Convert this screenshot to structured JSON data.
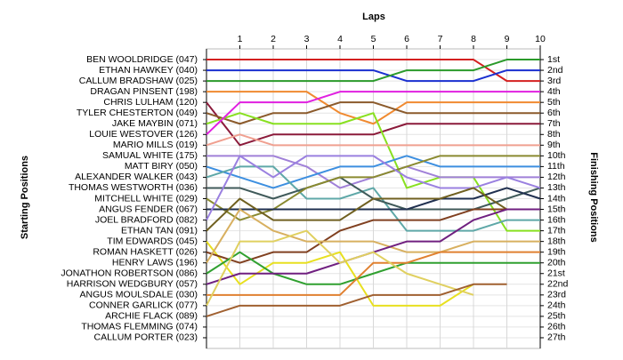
{
  "chart_data": {
    "type": "line",
    "x_label": "Laps",
    "y_label": "Starting Positions",
    "y2_label": "Finishing Positions",
    "x": [
      0,
      1,
      2,
      3,
      4,
      5,
      6,
      7,
      8,
      9,
      10
    ],
    "xlim": [
      0,
      10
    ],
    "xticks": [
      1,
      2,
      3,
      4,
      5,
      6,
      7,
      8,
      9,
      10
    ],
    "ylim": [
      28,
      0
    ],
    "y2lim": [
      28,
      0
    ],
    "y2ticks": [
      {
        "value": 1,
        "label": "1st"
      },
      {
        "value": 2,
        "label": "2nd"
      },
      {
        "value": 3,
        "label": "3rd"
      },
      {
        "value": 4,
        "label": "4th"
      },
      {
        "value": 5,
        "label": "5th"
      },
      {
        "value": 6,
        "label": "6th"
      },
      {
        "value": 7,
        "label": "7th"
      },
      {
        "value": 8,
        "label": "8th"
      },
      {
        "value": 9,
        "label": "9th"
      },
      {
        "value": 10,
        "label": "10th"
      },
      {
        "value": 11,
        "label": "11th"
      },
      {
        "value": 12,
        "label": "12th"
      },
      {
        "value": 13,
        "label": "13th"
      },
      {
        "value": 14,
        "label": "14th"
      },
      {
        "value": 15,
        "label": "15th"
      },
      {
        "value": 16,
        "label": "16th"
      },
      {
        "value": 17,
        "label": "17th"
      },
      {
        "value": 18,
        "label": "18th"
      },
      {
        "value": 19,
        "label": "19th"
      },
      {
        "value": 20,
        "label": "20th"
      },
      {
        "value": 21,
        "label": "21st"
      },
      {
        "value": 22,
        "label": "22nd"
      },
      {
        "value": 23,
        "label": "23rd"
      },
      {
        "value": 24,
        "label": "24th"
      },
      {
        "value": 25,
        "label": "25th"
      },
      {
        "value": 26,
        "label": "26th"
      },
      {
        "value": 27,
        "label": "27th"
      }
    ],
    "grid": true,
    "series": [
      {
        "name": "BEN WOOLDRIDGE (047)",
        "color": "#d42020",
        "values": [
          1,
          1,
          1,
          1,
          1,
          1,
          1,
          1,
          1,
          3,
          3
        ]
      },
      {
        "name": "ETHAN HAWKEY (040)",
        "color": "#1a2fd0",
        "values": [
          2,
          2,
          2,
          2,
          2,
          2,
          3,
          3,
          3,
          2,
          2
        ]
      },
      {
        "name": "CALLUM BRADSHAW (025)",
        "color": "#2a9a2a",
        "values": [
          3,
          3,
          3,
          3,
          3,
          3,
          2,
          2,
          2,
          1,
          1
        ]
      },
      {
        "name": "DRAGAN PINSENT (198)",
        "color": "#f08a30",
        "values": [
          4,
          4,
          4,
          4,
          6,
          7,
          5,
          5,
          5,
          5,
          5
        ]
      },
      {
        "name": "CHRIS LULHAM (120)",
        "color": "#8b1a3a",
        "values": [
          5,
          9,
          8,
          8,
          8,
          8,
          7,
          7,
          7,
          7,
          7
        ]
      },
      {
        "name": "TYLER CHESTERTON (049)",
        "color": "#8b5a2b",
        "values": [
          6,
          7,
          6,
          6,
          5,
          5,
          6,
          6,
          6,
          6,
          6
        ]
      },
      {
        "name": "JAKE MAYBIN (071)",
        "color": "#88e020",
        "values": [
          7,
          6,
          7,
          7,
          7,
          6,
          13,
          12,
          12,
          17,
          17
        ]
      },
      {
        "name": "LOUIE WESTOVER (126)",
        "color": "#e020e0",
        "values": [
          8,
          5,
          5,
          5,
          4,
          4,
          4,
          4,
          4,
          4,
          4
        ]
      },
      {
        "name": "MARIO MILLS (019)",
        "color": "#f0a090",
        "values": [
          9,
          8,
          9,
          9,
          9,
          9,
          9,
          9,
          9,
          9,
          9
        ]
      },
      {
        "name": "SAMUAL WHITE (175)",
        "color": "#a080d8",
        "values": [
          10,
          10,
          10,
          11,
          13,
          12,
          11,
          12,
          12,
          12,
          12
        ]
      },
      {
        "name": "MATT BIRY (050)",
        "color": "#3d8fe0",
        "values": [
          11,
          12,
          13,
          12,
          11,
          11,
          10,
          11,
          11,
          11,
          11
        ]
      },
      {
        "name": "ALEXANDER WALKER (043)",
        "color": "#5fa8a8",
        "values": [
          12,
          11,
          11,
          14,
          14,
          13,
          17,
          17,
          17,
          16,
          16
        ]
      },
      {
        "name": "THOMAS WESTWORTH (036)",
        "color": "#405a5a",
        "values": [
          13,
          13,
          14,
          13,
          12,
          14,
          15,
          15,
          15,
          14,
          13
        ]
      },
      {
        "name": "MITCHELL WHITE (029)",
        "color": "#8a8a30",
        "values": [
          14,
          16,
          15,
          13,
          12,
          12,
          11,
          10,
          10,
          10,
          10
        ]
      },
      {
        "name": "ANGUS FENDER (067)",
        "color": "#203050",
        "values": [
          15,
          15,
          15,
          15,
          15,
          15,
          15,
          14,
          14,
          13,
          14
        ]
      },
      {
        "name": "JOEL BRADFORD (082)",
        "color": "#9a80e0",
        "values": [
          16,
          10,
          12,
          10,
          10,
          10,
          12,
          13,
          13,
          12,
          13
        ]
      },
      {
        "name": "ETHAN TAN (091)",
        "color": "#706020",
        "values": [
          17,
          14,
          16,
          16,
          16,
          14,
          14,
          14,
          13,
          15,
          15
        ]
      },
      {
        "name": "TIM EDWARDS (045)",
        "color": "#e8e020",
        "values": [
          18,
          22,
          20,
          20,
          19,
          24,
          24,
          24,
          22,
          null,
          null
        ]
      },
      {
        "name": "ROMAN HASKETT (026)",
        "color": "#804020",
        "values": [
          19,
          20,
          19,
          19,
          17,
          16,
          16,
          16,
          15,
          15,
          15
        ]
      },
      {
        "name": "HENRY LAWS (196)",
        "color": "#d8b060",
        "values": [
          20,
          15,
          17,
          18,
          18,
          18,
          19,
          19,
          18,
          18,
          18
        ]
      },
      {
        "name": "JONATHON ROBERTSON (086)",
        "color": "#30a030",
        "values": [
          21,
          19,
          21,
          22,
          22,
          21,
          20,
          20,
          20,
          20,
          20
        ]
      },
      {
        "name": "HARRISON WEDGBURY (057)",
        "color": "#702080",
        "values": [
          22,
          21,
          21,
          21,
          20,
          19,
          18,
          18,
          16,
          15,
          15
        ]
      },
      {
        "name": "ANGUS MOULSDALE (030)",
        "color": "#e08030",
        "values": [
          23,
          23,
          23,
          23,
          23,
          20,
          20,
          19,
          19,
          19,
          19
        ]
      },
      {
        "name": "CONNER GARLICK (077)",
        "color": "#e0d060",
        "values": [
          24,
          18,
          18,
          17,
          20,
          19,
          21,
          22,
          23,
          null,
          null
        ]
      },
      {
        "name": "ARCHIE FLACK (089)",
        "color": "#a06030",
        "values": [
          25,
          24,
          24,
          24,
          24,
          23,
          23,
          23,
          22,
          22,
          null
        ]
      },
      {
        "name": "THOMAS FLEMMING (074)",
        "color": "#808080",
        "values": [
          26,
          null,
          null,
          null,
          null,
          null,
          null,
          null,
          null,
          null,
          null
        ]
      },
      {
        "name": "CALLUM PORTER (023)",
        "color": "#808080",
        "values": [
          27,
          null,
          null,
          null,
          null,
          null,
          null,
          null,
          null,
          null,
          null
        ]
      }
    ]
  }
}
